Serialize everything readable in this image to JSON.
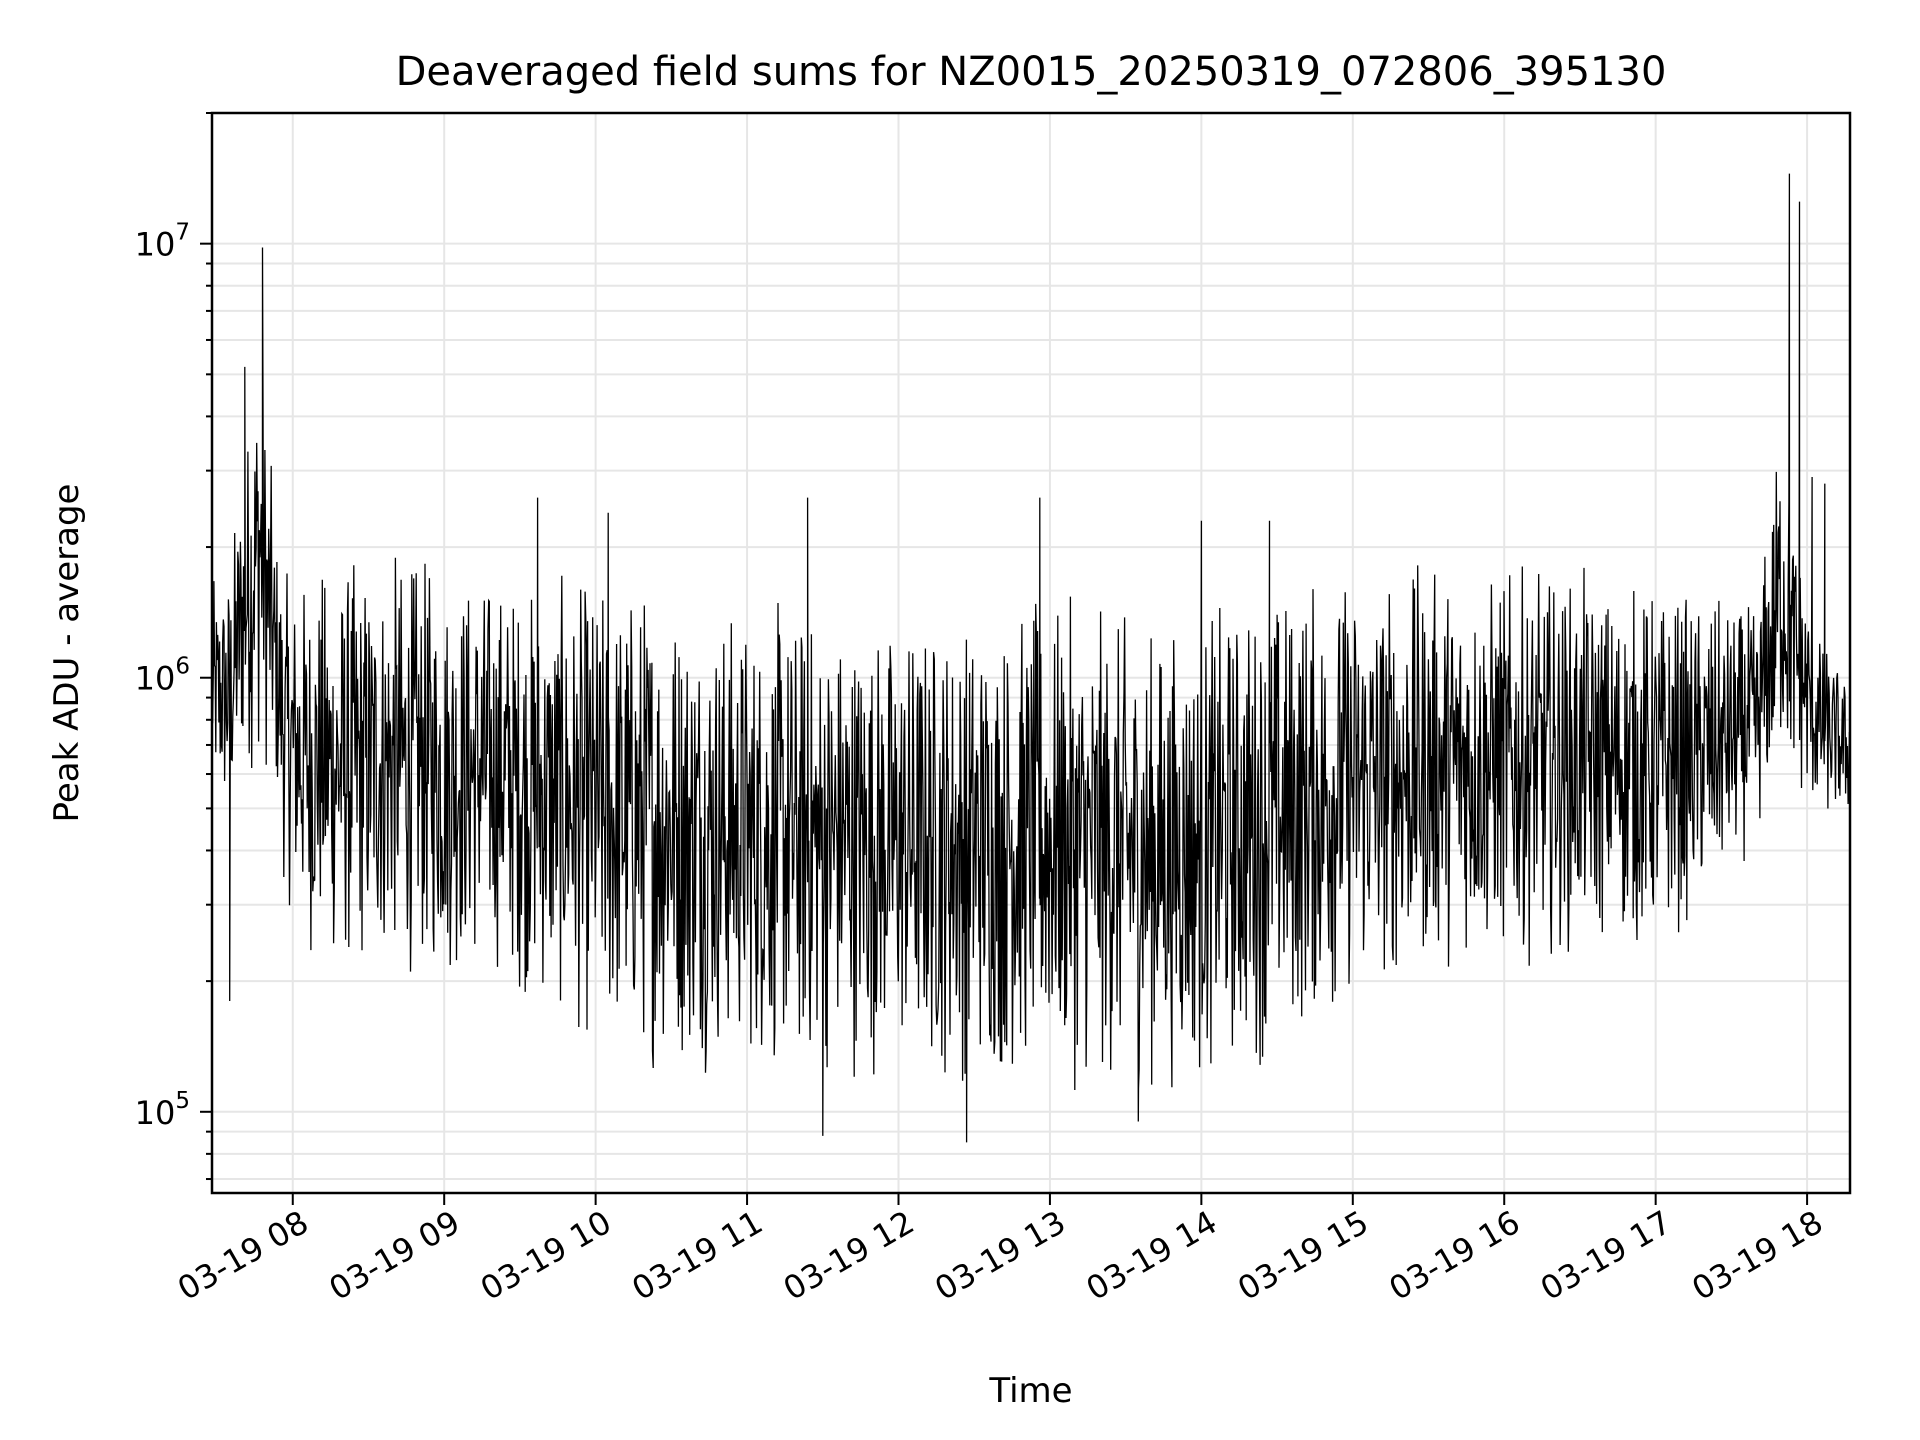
{
  "chart_data": {
    "type": "line",
    "title": "Deaveraged field sums for NZ0015_20250319_072806_395130",
    "xlabel": "Time",
    "ylabel": "Peak ADU - average",
    "yscale": "log",
    "ylim": [
      65000,
      20000000
    ],
    "xlim": [
      "2025-03-19 07:28",
      "2025-03-19 18:17"
    ],
    "grid": true,
    "legend": "none",
    "line_color": "#000000",
    "x_ticks": [
      {
        "value": "2025-03-19 08:00",
        "label": "03-19 08"
      },
      {
        "value": "2025-03-19 09:00",
        "label": "03-19 09"
      },
      {
        "value": "2025-03-19 10:00",
        "label": "03-19 10"
      },
      {
        "value": "2025-03-19 11:00",
        "label": "03-19 11"
      },
      {
        "value": "2025-03-19 12:00",
        "label": "03-19 12"
      },
      {
        "value": "2025-03-19 13:00",
        "label": "03-19 13"
      },
      {
        "value": "2025-03-19 14:00",
        "label": "03-19 14"
      },
      {
        "value": "2025-03-19 15:00",
        "label": "03-19 15"
      },
      {
        "value": "2025-03-19 16:00",
        "label": "03-19 16"
      },
      {
        "value": "2025-03-19 17:00",
        "label": "03-19 17"
      },
      {
        "value": "2025-03-19 18:00",
        "label": "03-19 18"
      }
    ],
    "y_ticks": [
      {
        "value": 100000,
        "base": "10",
        "exp": "5"
      },
      {
        "value": 1000000,
        "base": "10",
        "exp": "6"
      },
      {
        "value": 10000000,
        "base": "10",
        "exp": "7"
      }
    ],
    "envelope": [
      {
        "x": "2025-03-19 07:28",
        "low": 500000,
        "high": 1700000
      },
      {
        "x": "2025-03-19 07:35",
        "low": 400000,
        "high": 2000000
      },
      {
        "x": "2025-03-19 07:40",
        "low": 550000,
        "high": 3500000
      },
      {
        "x": "2025-03-19 07:47",
        "low": 600000,
        "high": 7000000
      },
      {
        "x": "2025-03-19 07:53",
        "low": 500000,
        "high": 2500000
      },
      {
        "x": "2025-03-19 07:57",
        "low": 300000,
        "high": 1800000
      },
      {
        "x": "2025-03-19 08:05",
        "low": 220000,
        "high": 1900000
      },
      {
        "x": "2025-03-19 08:20",
        "low": 190000,
        "high": 2000000
      },
      {
        "x": "2025-03-19 08:40",
        "low": 200000,
        "high": 2100000
      },
      {
        "x": "2025-03-19 09:00",
        "low": 190000,
        "high": 1950000
      },
      {
        "x": "2025-03-19 09:20",
        "low": 200000,
        "high": 1900000
      },
      {
        "x": "2025-03-19 09:40",
        "low": 160000,
        "high": 1800000
      },
      {
        "x": "2025-03-19 10:00",
        "low": 130000,
        "high": 1800000
      },
      {
        "x": "2025-03-19 10:20",
        "low": 120000,
        "high": 1900000
      },
      {
        "x": "2025-03-19 10:40",
        "low": 120000,
        "high": 1700000
      },
      {
        "x": "2025-03-19 11:00",
        "low": 120000,
        "high": 1600000
      },
      {
        "x": "2025-03-19 11:20",
        "low": 110000,
        "high": 1600000
      },
      {
        "x": "2025-03-19 11:40",
        "low": 115000,
        "high": 1550000
      },
      {
        "x": "2025-03-19 12:00",
        "low": 115000,
        "high": 1500000
      },
      {
        "x": "2025-03-19 12:20",
        "low": 110000,
        "high": 1550000
      },
      {
        "x": "2025-03-19 12:40",
        "low": 110000,
        "high": 1600000
      },
      {
        "x": "2025-03-19 13:00",
        "low": 110000,
        "high": 1600000
      },
      {
        "x": "2025-03-19 13:20",
        "low": 105000,
        "high": 1550000
      },
      {
        "x": "2025-03-19 13:40",
        "low": 105000,
        "high": 1450000
      },
      {
        "x": "2025-03-19 14:00",
        "low": 110000,
        "high": 1500000
      },
      {
        "x": "2025-03-19 14:20",
        "low": 120000,
        "high": 1700000
      },
      {
        "x": "2025-03-19 14:40",
        "low": 140000,
        "high": 1850000
      },
      {
        "x": "2025-03-19 15:00",
        "low": 170000,
        "high": 1900000
      },
      {
        "x": "2025-03-19 15:20",
        "low": 190000,
        "high": 1900000
      },
      {
        "x": "2025-03-19 15:40",
        "low": 210000,
        "high": 1950000
      },
      {
        "x": "2025-03-19 16:00",
        "low": 210000,
        "high": 1900000
      },
      {
        "x": "2025-03-19 16:20",
        "low": 220000,
        "high": 1850000
      },
      {
        "x": "2025-03-19 16:40",
        "low": 230000,
        "high": 1800000
      },
      {
        "x": "2025-03-19 17:00",
        "low": 220000,
        "high": 1750000
      },
      {
        "x": "2025-03-19 17:20",
        "low": 280000,
        "high": 1600000
      },
      {
        "x": "2025-03-19 17:40",
        "low": 400000,
        "high": 1500000
      },
      {
        "x": "2025-03-19 17:50",
        "low": 600000,
        "high": 4500000
      },
      {
        "x": "2025-03-19 17:55",
        "low": 500000,
        "high": 2500000
      },
      {
        "x": "2025-03-19 18:05",
        "low": 450000,
        "high": 1300000
      },
      {
        "x": "2025-03-19 18:17",
        "low": 450000,
        "high": 1000000
      }
    ],
    "spikes": [
      {
        "x": "2025-03-19 07:48",
        "y": 9800000
      },
      {
        "x": "2025-03-19 07:41",
        "y": 5200000
      },
      {
        "x": "2025-03-19 17:53",
        "y": 14500000
      },
      {
        "x": "2025-03-19 17:57",
        "y": 12500000
      },
      {
        "x": "2025-03-19 18:02",
        "y": 2900000
      },
      {
        "x": "2025-03-19 18:07",
        "y": 2800000
      },
      {
        "x": "2025-03-19 09:37",
        "y": 2600000
      },
      {
        "x": "2025-03-19 10:05",
        "y": 2400000
      },
      {
        "x": "2025-03-19 11:24",
        "y": 2600000
      },
      {
        "x": "2025-03-19 12:56",
        "y": 2600000
      },
      {
        "x": "2025-03-19 14:00",
        "y": 2300000
      },
      {
        "x": "2025-03-19 14:27",
        "y": 2300000
      },
      {
        "x": "2025-03-19 12:27",
        "y": 85000
      },
      {
        "x": "2025-03-19 11:30",
        "y": 88000
      },
      {
        "x": "2025-03-19 13:35",
        "y": 95000
      },
      {
        "x": "2025-03-19 07:35",
        "y": 180000
      }
    ]
  }
}
